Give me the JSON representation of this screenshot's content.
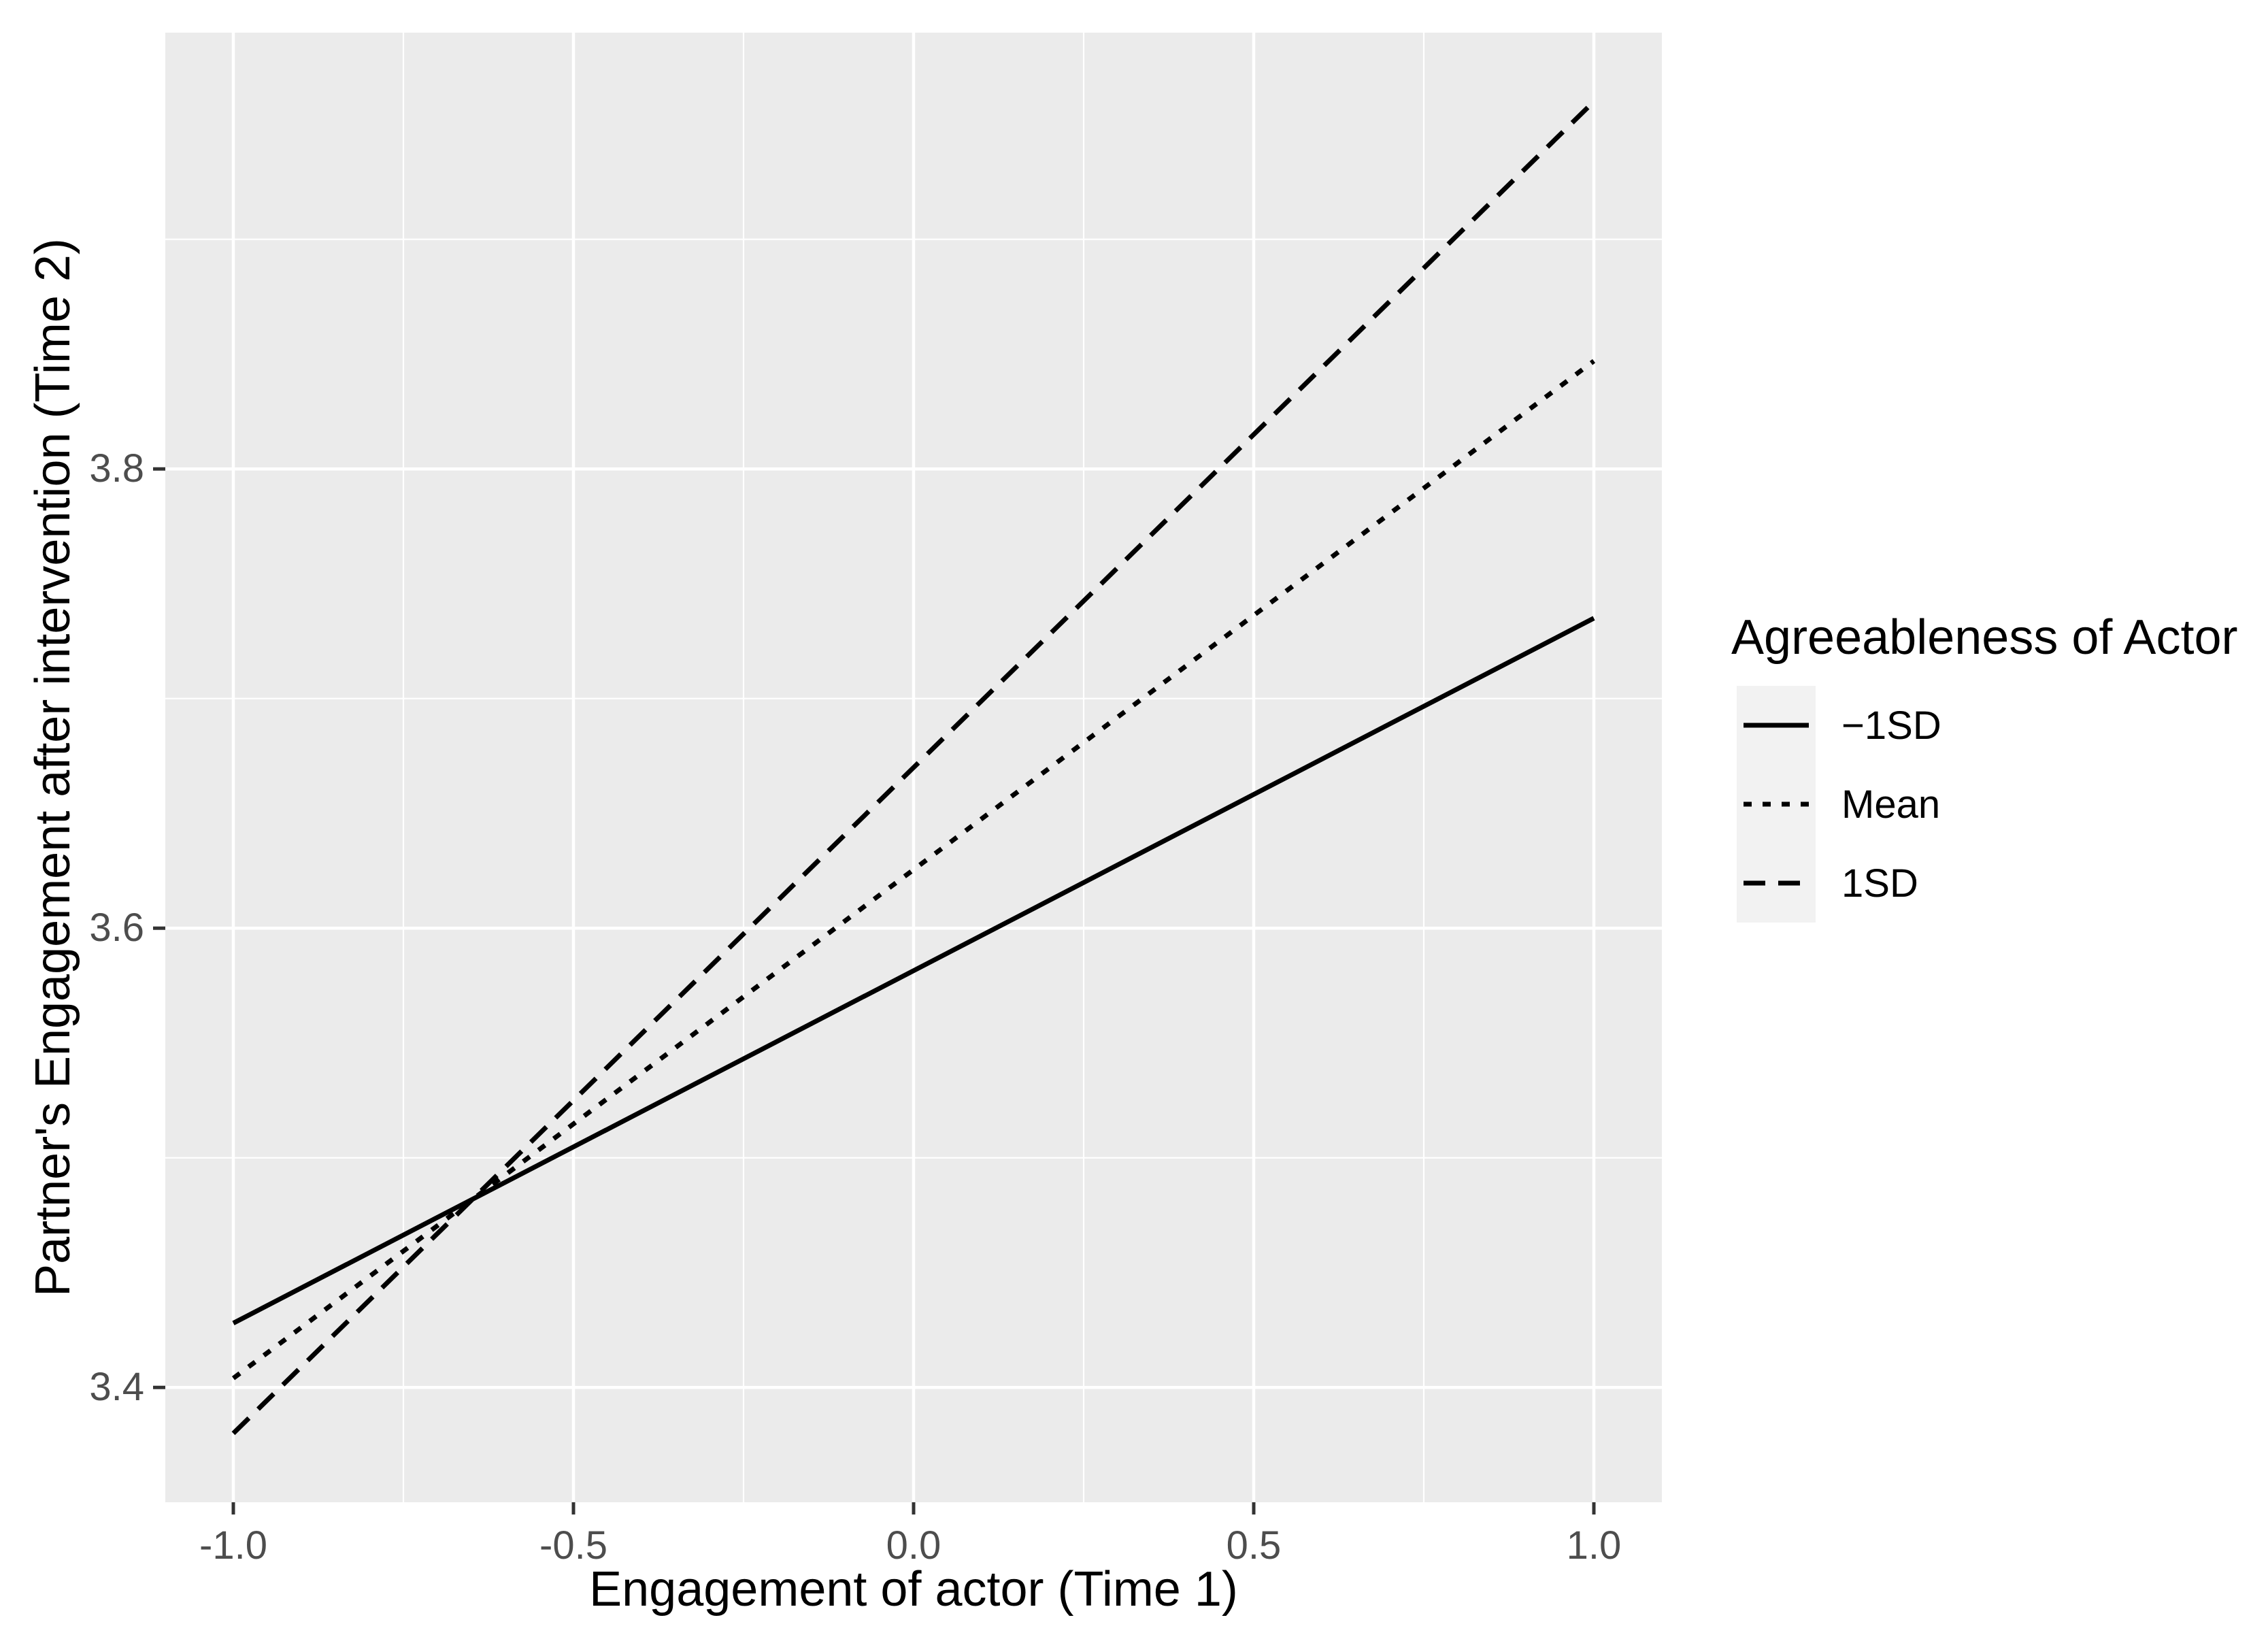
{
  "figure": {
    "background_color": "#FFFFFF",
    "panel_background_color": "#EBEBEB",
    "gridline_color": "#FFFFFF",
    "tick_mark_color": "#333333",
    "tick_label_color": "#4D4D4D",
    "series_line_color": "#000000",
    "legend_key_background_color": "#F2F2F2"
  },
  "chart_data": {
    "type": "line",
    "title": "",
    "xlabel": "Engagement of actor (Time 1)",
    "ylabel": "Partner's Engagement after intervention (Time 2)",
    "xlim": [
      -1.1,
      1.1
    ],
    "ylim": [
      3.35,
      3.99
    ],
    "grid": true,
    "x_ticks": {
      "values": [
        -1.0,
        -0.5,
        0.0,
        0.5,
        1.0
      ],
      "labels": [
        "-1.0",
        "-0.5",
        "0.0",
        "0.5",
        "1.0"
      ]
    },
    "y_ticks": {
      "values": [
        3.4,
        3.6,
        3.8
      ],
      "labels": [
        "3.4",
        "3.6",
        "3.8"
      ]
    },
    "x_minor": [
      -0.75,
      -0.25,
      0.25,
      0.75
    ],
    "y_minor": [
      3.5,
      3.7,
      3.9
    ],
    "legend": {
      "title": "Agreeableness of Actor",
      "position": "right"
    },
    "series": [
      {
        "name": "−1SD",
        "linetype": "solid",
        "x": [
          -1,
          1
        ],
        "y": [
          3.428,
          3.735
        ]
      },
      {
        "name": "Mean",
        "linetype": "dotted",
        "x": [
          -1,
          1
        ],
        "y": [
          3.404,
          3.847
        ]
      },
      {
        "name": "1SD",
        "linetype": "dashed",
        "x": [
          -1,
          1
        ],
        "y": [
          3.38,
          3.96
        ]
      }
    ]
  }
}
